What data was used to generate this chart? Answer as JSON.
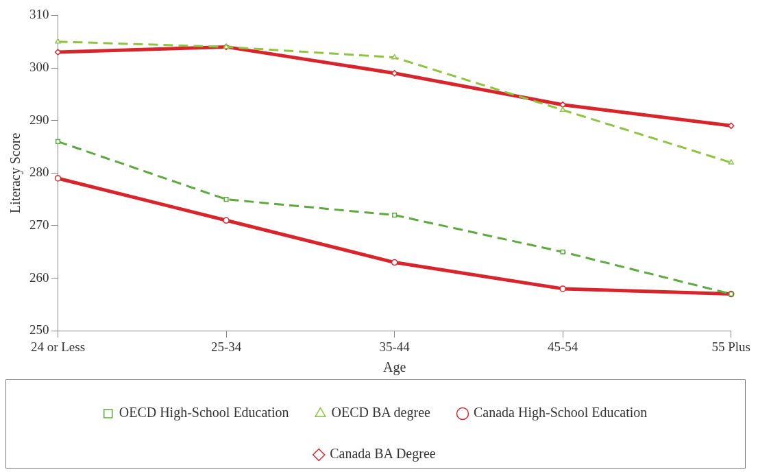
{
  "chart_data": {
    "type": "line",
    "xlabel": "Age",
    "ylabel": "Literacy Score",
    "categories": [
      "24 or Less",
      "25-34",
      "35-44",
      "45-54",
      "55 Plus"
    ],
    "ylim": [
      250,
      310
    ],
    "yticks": [
      250,
      260,
      270,
      280,
      290,
      300,
      310
    ],
    "legend": "bottom",
    "series": [
      {
        "name": "Canada BA Degree",
        "color": "#d9242b",
        "marker": "diamond",
        "line_style": "solid",
        "values": [
          303,
          304,
          299,
          293,
          289
        ]
      },
      {
        "name": "Canada High-School Education",
        "color": "#d9242b",
        "marker": "circle",
        "line_style": "solid",
        "values": [
          279,
          271,
          263,
          258,
          257
        ]
      },
      {
        "name": "OECD BA degree",
        "color": "#8cc63f",
        "marker": "triangle",
        "line_style": "dashed",
        "values": [
          305,
          304,
          302,
          292,
          282
        ]
      },
      {
        "name": "OECD High-School Education",
        "color": "#5aab3c",
        "marker": "square",
        "line_style": "dashed",
        "values": [
          286,
          275,
          272,
          265,
          257
        ]
      }
    ]
  }
}
